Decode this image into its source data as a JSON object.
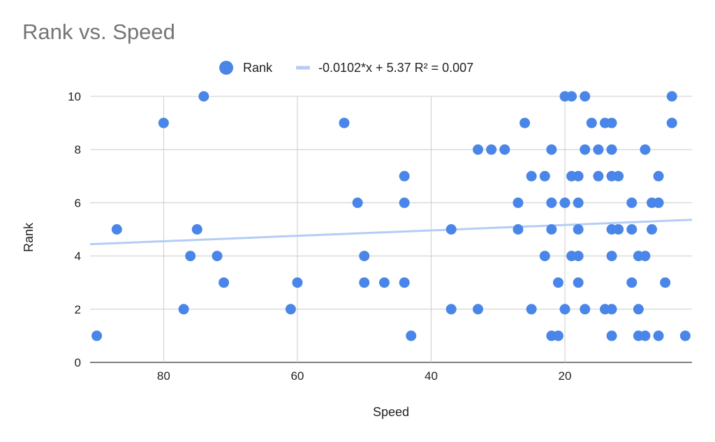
{
  "chart_data": {
    "type": "scatter",
    "title": "Rank vs. Speed",
    "xlabel": "Speed",
    "ylabel": "Rank",
    "x_reversed": true,
    "xlim": [
      91,
      1
    ],
    "ylim": [
      0,
      10
    ],
    "x_ticks": [
      80,
      60,
      40,
      20
    ],
    "y_ticks": [
      0,
      2,
      4,
      6,
      8,
      10
    ],
    "grid": true,
    "legend_position": "top",
    "colors": {
      "series": "#4a86e8",
      "trendline": "#b4cdf6",
      "grid": "#cccccc"
    },
    "series": [
      {
        "name": "Rank",
        "points": [
          {
            "x": 90,
            "y": 1
          },
          {
            "x": 87,
            "y": 5
          },
          {
            "x": 80,
            "y": 9
          },
          {
            "x": 77,
            "y": 2
          },
          {
            "x": 76,
            "y": 4
          },
          {
            "x": 75,
            "y": 5
          },
          {
            "x": 74,
            "y": 10
          },
          {
            "x": 72,
            "y": 4
          },
          {
            "x": 71,
            "y": 3
          },
          {
            "x": 61,
            "y": 2
          },
          {
            "x": 60,
            "y": 3
          },
          {
            "x": 53,
            "y": 9
          },
          {
            "x": 51,
            "y": 6
          },
          {
            "x": 50,
            "y": 4
          },
          {
            "x": 50,
            "y": 3
          },
          {
            "x": 47,
            "y": 3
          },
          {
            "x": 44,
            "y": 7
          },
          {
            "x": 44,
            "y": 6
          },
          {
            "x": 44,
            "y": 3
          },
          {
            "x": 43,
            "y": 1
          },
          {
            "x": 37,
            "y": 5
          },
          {
            "x": 37,
            "y": 2
          },
          {
            "x": 33,
            "y": 8
          },
          {
            "x": 33,
            "y": 2
          },
          {
            "x": 31,
            "y": 8
          },
          {
            "x": 29,
            "y": 8
          },
          {
            "x": 27,
            "y": 6
          },
          {
            "x": 27,
            "y": 5
          },
          {
            "x": 26,
            "y": 9
          },
          {
            "x": 25,
            "y": 7
          },
          {
            "x": 25,
            "y": 2
          },
          {
            "x": 23,
            "y": 7
          },
          {
            "x": 23,
            "y": 4
          },
          {
            "x": 22,
            "y": 8
          },
          {
            "x": 22,
            "y": 6
          },
          {
            "x": 22,
            "y": 5
          },
          {
            "x": 22,
            "y": 1
          },
          {
            "x": 21,
            "y": 3
          },
          {
            "x": 21,
            "y": 1
          },
          {
            "x": 20,
            "y": 10
          },
          {
            "x": 20,
            "y": 6
          },
          {
            "x": 20,
            "y": 2
          },
          {
            "x": 19,
            "y": 10
          },
          {
            "x": 19,
            "y": 7
          },
          {
            "x": 19,
            "y": 4
          },
          {
            "x": 18,
            "y": 7
          },
          {
            "x": 18,
            "y": 6
          },
          {
            "x": 18,
            "y": 5
          },
          {
            "x": 18,
            "y": 4
          },
          {
            "x": 18,
            "y": 3
          },
          {
            "x": 17,
            "y": 10
          },
          {
            "x": 17,
            "y": 8
          },
          {
            "x": 17,
            "y": 2
          },
          {
            "x": 16,
            "y": 9
          },
          {
            "x": 15,
            "y": 8
          },
          {
            "x": 15,
            "y": 7
          },
          {
            "x": 14,
            "y": 9
          },
          {
            "x": 14,
            "y": 2
          },
          {
            "x": 13,
            "y": 9
          },
          {
            "x": 13,
            "y": 8
          },
          {
            "x": 13,
            "y": 7
          },
          {
            "x": 13,
            "y": 5
          },
          {
            "x": 13,
            "y": 4
          },
          {
            "x": 13,
            "y": 2
          },
          {
            "x": 13,
            "y": 1
          },
          {
            "x": 12,
            "y": 7
          },
          {
            "x": 12,
            "y": 5
          },
          {
            "x": 10,
            "y": 6
          },
          {
            "x": 10,
            "y": 5
          },
          {
            "x": 10,
            "y": 3
          },
          {
            "x": 9,
            "y": 4
          },
          {
            "x": 9,
            "y": 2
          },
          {
            "x": 9,
            "y": 1
          },
          {
            "x": 8,
            "y": 8
          },
          {
            "x": 8,
            "y": 4
          },
          {
            "x": 8,
            "y": 1
          },
          {
            "x": 7,
            "y": 6
          },
          {
            "x": 7,
            "y": 5
          },
          {
            "x": 6,
            "y": 7
          },
          {
            "x": 6,
            "y": 6
          },
          {
            "x": 6,
            "y": 1
          },
          {
            "x": 5,
            "y": 3
          },
          {
            "x": 4,
            "y": 10
          },
          {
            "x": 4,
            "y": 9
          },
          {
            "x": 2,
            "y": 1
          }
        ]
      }
    ],
    "trendline": {
      "label": "-0.0102*x + 5.37 R² = 0.007",
      "slope": -0.0102,
      "intercept": 5.37
    }
  }
}
